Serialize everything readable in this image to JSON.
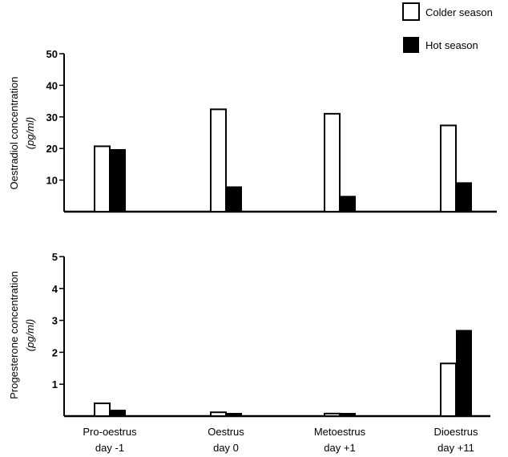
{
  "chart_data": {
    "type": "bar",
    "legend": {
      "placement": "top-right",
      "entries": [
        {
          "name": "Colder season",
          "style": "open",
          "color": "#ffffff"
        },
        {
          "name": "Hot season",
          "style": "filled",
          "color": "#000000"
        }
      ]
    },
    "categories": [
      {
        "line1": "Pro-oestrus",
        "line2": "day -1"
      },
      {
        "line1": "Oestrus",
        "line2": "day 0"
      },
      {
        "line1": "Metoestrus",
        "line2": "day +1"
      },
      {
        "line1": "Dioestrus",
        "line2": "day +11"
      }
    ],
    "panels": [
      {
        "id": "oestradiol",
        "ylabel": "Oestradiol concentration",
        "yunit": "(pg/ml)",
        "ylim": [
          0,
          50
        ],
        "yticks": [
          10,
          20,
          30,
          40,
          50
        ],
        "series": [
          {
            "name": "Colder season",
            "values": [
              20.7,
              32.4,
              31.0,
              27.3
            ]
          },
          {
            "name": "Hot season",
            "values": [
              19.8,
              8.0,
              5.0,
              9.3
            ]
          }
        ]
      },
      {
        "id": "progesterone",
        "ylabel": "Progesterone concentration",
        "yunit": "(pg/ml)",
        "ylim": [
          0,
          5
        ],
        "yticks": [
          1,
          2,
          3,
          4,
          5
        ],
        "series": [
          {
            "name": "Colder season",
            "values": [
              0.4,
              0.12,
              0.08,
              1.65
            ]
          },
          {
            "name": "Hot season",
            "values": [
              0.2,
              0.1,
              0.1,
              2.7
            ]
          }
        ]
      }
    ]
  }
}
